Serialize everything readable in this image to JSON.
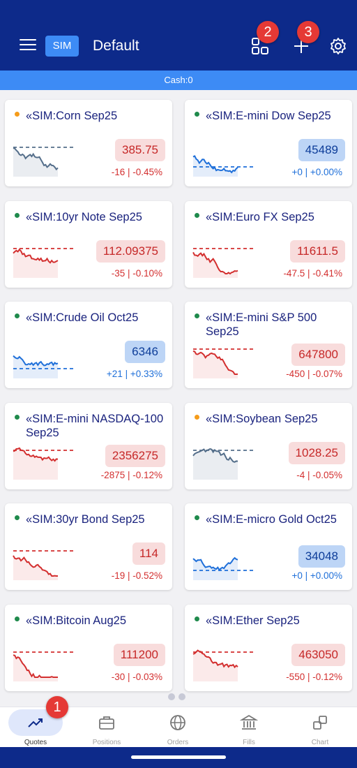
{
  "header": {
    "badge": "SIM",
    "title": "Default",
    "markers": [
      "2",
      "3"
    ]
  },
  "cash_label": "Cash:0",
  "colors": {
    "header": "#0d2a8a",
    "accent": "#3d8bf5",
    "up": "#1e6fd9",
    "down": "#d32f2f",
    "neutral": "#546e8a"
  },
  "cards": [
    {
      "name": "«SIM:Corn Sep25",
      "price": "385.75",
      "change": "-16 | -0.45%",
      "trend": "neutral",
      "dot": "#f59c1a"
    },
    {
      "name": "«SIM:E-mini Dow Sep25",
      "price": "45489",
      "change": "+0 | +0.00%",
      "trend": "up",
      "dot": "#1f8a4c"
    },
    {
      "name": "«SIM:10yr Note Sep25",
      "price": "112.09375",
      "change": "-35 | -0.10%",
      "trend": "down",
      "dot": "#1f8a4c"
    },
    {
      "name": "«SIM:Euro FX Sep25",
      "price": "11611.5",
      "change": "-47.5 | -0.41%",
      "trend": "down",
      "dot": "#1f8a4c"
    },
    {
      "name": "«SIM:Crude Oil Oct25",
      "price": "6346",
      "change": "+21 | +0.33%",
      "trend": "up",
      "dot": "#1f8a4c"
    },
    {
      "name": "«SIM:E-mini S&P 500 Sep25",
      "price": "647800",
      "change": "-450 | -0.07%",
      "trend": "down",
      "dot": "#1f8a4c"
    },
    {
      "name": "«SIM:E-mini NASDAQ-100 Sep25",
      "price": "2356275",
      "change": "-2875 | -0.12%",
      "trend": "down",
      "dot": "#1f8a4c"
    },
    {
      "name": "«SIM:Soybean Sep25",
      "price": "1028.25",
      "change": "-4 | -0.05%",
      "trend": "neutral",
      "dot": "#f59c1a"
    },
    {
      "name": "«SIM:30yr Bond Sep25",
      "price": "114",
      "change": "-19 | -0.52%",
      "trend": "down",
      "dot": "#1f8a4c"
    },
    {
      "name": "«SIM:E-micro Gold Oct25",
      "price": "34048",
      "change": "+0 | +0.00%",
      "trend": "up",
      "dot": "#1f8a4c"
    },
    {
      "name": "«SIM:Bitcoin Aug25",
      "price": "111200",
      "change": "-30 | -0.03%",
      "trend": "down",
      "dot": "#1f8a4c"
    },
    {
      "name": "«SIM:Ether Sep25",
      "price": "463050",
      "change": "-550 | -0.12%",
      "trend": "down",
      "dot": "#1f8a4c"
    }
  ],
  "nav": {
    "items": [
      {
        "label": "Quotes",
        "icon": "trending-up-icon"
      },
      {
        "label": "Positions",
        "icon": "briefcase-icon"
      },
      {
        "label": "Orders",
        "icon": "globe-icon"
      },
      {
        "label": "Fills",
        "icon": "bank-icon"
      },
      {
        "label": "Chart",
        "icon": "chart-squares-icon"
      }
    ],
    "marker": "1"
  }
}
